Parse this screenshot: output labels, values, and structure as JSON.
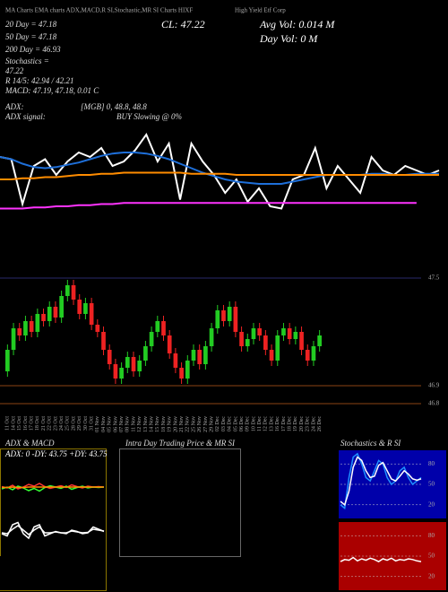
{
  "header": {
    "site": "MA Charts EMA charts ADX,MACD,R SI,Stochastic,MR SI Charts HIXF",
    "company": "High Yield Etf Corp"
  },
  "stats": {
    "close": "CL: 47.22",
    "avg_vol": "Avg Vol: 0.014  M",
    "day_vol": "Day Vol: 0  M",
    "d20": "20  Day = 47.18",
    "d50": "50  Day = 47.18",
    "d200": "200  Day = 46.93",
    "stoch_label": "Stochastics = ",
    "stoch_value": "47.22",
    "rsi": "R  14/5: 42.94 / 42.21",
    "macd": "MACD: 47.19, 47.18, 0.01 C",
    "adx_label": "ADX:",
    "adx_mgb": "[MGB] 0, 48.8, 48.8",
    "adx_signal_label": "ADX  signal:",
    "adx_signal": "BUY Slowing @ 0%"
  },
  "panels": {
    "adx_macd": "ADX  & MACD",
    "intraday": "Intra  Day Trading Price  & MR SI",
    "stoch_rsi": "Stochastics & R SI"
  },
  "chart_data": [
    {
      "type": "line",
      "ylim": [
        46.8,
        47.6
      ],
      "series": [
        {
          "color": "#ffffff",
          "values": [
            47.32,
            47.3,
            46.9,
            47.24,
            47.3,
            47.16,
            47.28,
            47.36,
            47.32,
            47.4,
            47.24,
            47.28,
            47.38,
            47.52,
            47.28,
            47.44,
            46.94,
            47.44,
            47.28,
            47.16,
            47.0,
            47.12,
            46.92,
            47.04,
            46.88,
            46.86,
            47.12,
            47.16,
            47.4,
            47.04,
            47.24,
            47.12,
            47.0,
            47.32,
            47.2,
            47.16,
            47.24,
            47.2,
            47.16,
            47.2
          ]
        },
        {
          "color": "#1e6fd9",
          "values": [
            47.32,
            47.3,
            47.26,
            47.23,
            47.22,
            47.23,
            47.25,
            47.27,
            47.3,
            47.33,
            47.35,
            47.36,
            47.36,
            47.35,
            47.33,
            47.3,
            47.26,
            47.22,
            47.18,
            47.15,
            47.12,
            47.1,
            47.09,
            47.08,
            47.08,
            47.08,
            47.1,
            47.12,
            47.14,
            47.16,
            47.16,
            47.16,
            47.16,
            47.17,
            47.17,
            47.16,
            47.16,
            47.17,
            47.17,
            47.17
          ]
        },
        {
          "color": "#ff8c00",
          "values": [
            47.12,
            47.12,
            47.13,
            47.13,
            47.14,
            47.14,
            47.15,
            47.16,
            47.16,
            47.17,
            47.17,
            47.18,
            47.18,
            47.18,
            47.18,
            47.18,
            47.18,
            47.17,
            47.17,
            47.17,
            47.17,
            47.16,
            47.16,
            47.16,
            47.16,
            47.16,
            47.16,
            47.16,
            47.16,
            47.16,
            47.16,
            47.16,
            47.16,
            47.16,
            47.16,
            47.16,
            47.16,
            47.16,
            47.16,
            47.16
          ]
        },
        {
          "color": "#ff33ff",
          "values": [
            46.86,
            46.86,
            46.86,
            46.87,
            46.87,
            46.88,
            46.88,
            46.89,
            46.89,
            46.9,
            46.9,
            46.91,
            46.91,
            46.91,
            46.91,
            46.91,
            46.91,
            46.91,
            46.91,
            46.91,
            46.91,
            46.91,
            46.91,
            46.91,
            46.91,
            46.91,
            46.91,
            46.91,
            46.91,
            46.91,
            46.91,
            46.91,
            46.91,
            46.91,
            46.91,
            46.91,
            46.91,
            46.91,
            null,
            null
          ]
        }
      ]
    },
    {
      "type": "candlestick",
      "ylim": [
        46.75,
        47.55
      ],
      "yticks": [
        47.5,
        46.9,
        46.8
      ],
      "categories": [
        "11 Oct",
        "14 Oct",
        "15 Oct",
        "16 Oct",
        "17 Oct",
        "18 Oct",
        "21 Oct",
        "22 Oct",
        "23 Oct",
        "24 Oct",
        "25 Oct",
        "28 Oct",
        "29 Oct",
        "30 Oct",
        "31 Oct",
        "01 Nov",
        "04 Nov",
        "05 Nov",
        "06 Nov",
        "07 Nov",
        "08 Nov",
        "11 Nov",
        "12 Nov",
        "13 Nov",
        "14 Nov",
        "15 Nov",
        "18 Nov",
        "19 Nov",
        "20 Nov",
        "21 Nov",
        "22 Nov",
        "25 Nov",
        "26 Nov",
        "27 Nov",
        "29 Nov",
        "02 Dec",
        "03 Dec",
        "04 Dec",
        "05 Dec",
        "06 Dec",
        "09 Dec",
        "10 Dec",
        "11 Dec",
        "12 Dec",
        "13 Dec",
        "16 Dec",
        "17 Dec",
        "18 Dec",
        "19 Dec",
        "20 Dec",
        "23 Dec",
        "24 Dec",
        "26 Dec"
      ],
      "open": [
        46.98,
        47.1,
        47.22,
        47.18,
        47.26,
        47.2,
        47.3,
        47.26,
        47.34,
        47.28,
        47.4,
        47.46,
        47.38,
        47.3,
        47.36,
        47.24,
        47.2,
        47.1,
        47.02,
        46.94,
        47.0,
        47.06,
        46.98,
        47.04,
        47.12,
        47.2,
        47.26,
        47.18,
        47.08,
        47.0,
        46.94,
        47.04,
        47.1,
        47.02,
        47.12,
        47.22,
        47.32,
        47.26,
        47.34,
        47.2,
        47.12,
        47.16,
        47.22,
        47.18,
        47.1,
        47.04,
        47.18,
        47.22,
        47.16,
        47.2,
        47.1,
        47.04,
        47.12
      ],
      "high": [
        47.13,
        47.25,
        47.25,
        47.29,
        47.29,
        47.33,
        47.33,
        47.37,
        47.37,
        47.43,
        47.49,
        47.49,
        47.41,
        47.39,
        47.39,
        47.27,
        47.23,
        47.13,
        47.05,
        47.03,
        47.09,
        47.09,
        47.07,
        47.15,
        47.23,
        47.29,
        47.29,
        47.21,
        47.11,
        47.03,
        47.07,
        47.13,
        47.13,
        47.15,
        47.25,
        47.35,
        47.35,
        47.37,
        47.37,
        47.23,
        47.19,
        47.25,
        47.25,
        47.21,
        47.13,
        47.21,
        47.25,
        47.25,
        47.23,
        47.23,
        47.13,
        47.15,
        47.21
      ],
      "low": [
        46.95,
        47.07,
        47.15,
        47.15,
        47.17,
        47.17,
        47.23,
        47.23,
        47.25,
        47.25,
        47.37,
        47.35,
        47.27,
        47.27,
        47.21,
        47.17,
        47.07,
        46.99,
        46.91,
        46.91,
        46.97,
        46.95,
        46.95,
        47.01,
        47.09,
        47.17,
        47.15,
        47.05,
        46.97,
        46.91,
        46.91,
        47.01,
        46.99,
        46.99,
        47.09,
        47.19,
        47.23,
        47.23,
        47.17,
        47.09,
        47.09,
        47.13,
        47.15,
        47.07,
        47.01,
        47.01,
        47.15,
        47.13,
        47.13,
        47.07,
        47.01,
        47.01,
        47.09
      ],
      "close": [
        47.1,
        47.22,
        47.18,
        47.26,
        47.2,
        47.3,
        47.26,
        47.34,
        47.28,
        47.4,
        47.46,
        47.38,
        47.3,
        47.36,
        47.24,
        47.2,
        47.1,
        47.02,
        46.94,
        47.0,
        47.06,
        46.98,
        47.04,
        47.12,
        47.2,
        47.26,
        47.18,
        47.08,
        47.0,
        46.94,
        47.04,
        47.1,
        47.02,
        47.12,
        47.22,
        47.32,
        47.26,
        47.34,
        47.2,
        47.12,
        47.16,
        47.22,
        47.18,
        47.1,
        47.04,
        47.18,
        47.22,
        47.16,
        47.2,
        47.1,
        47.04,
        47.12,
        47.18
      ]
    },
    {
      "type": "line",
      "title": "ADX: 0  -DY: 43.75  +DY: 43.75",
      "ylim": [
        0,
        100
      ],
      "series": [
        {
          "color": "#ff3333",
          "values": [
            45,
            42,
            48,
            40,
            44,
            50,
            46,
            52,
            45,
            41,
            44,
            47,
            43,
            49,
            45,
            42,
            46,
            44,
            45,
            44
          ]
        },
        {
          "color": "#33ff33",
          "values": [
            40,
            44,
            38,
            46,
            42,
            36,
            41,
            35,
            43,
            47,
            44,
            41,
            46,
            39,
            43,
            46,
            42,
            44,
            43,
            44
          ]
        },
        {
          "color": "#ff8c00",
          "values": [
            43,
            43,
            44,
            43,
            43,
            44,
            44,
            44,
            44,
            44,
            44,
            44,
            44,
            44,
            44,
            44,
            44,
            44,
            44,
            44
          ]
        }
      ]
    },
    {
      "type": "line",
      "ylim": [
        0,
        100
      ],
      "series": [
        {
          "color": "#ffffff",
          "values": [
            40,
            35,
            60,
            65,
            40,
            30,
            55,
            60,
            35,
            40,
            45,
            42,
            40,
            48,
            45,
            40,
            42,
            55,
            50,
            45
          ]
        },
        {
          "color": "#ffffff",
          "values": [
            42,
            40,
            50,
            58,
            48,
            38,
            48,
            55,
            42,
            42,
            44,
            42,
            42,
            46,
            44,
            42,
            43,
            50,
            48,
            46
          ]
        }
      ]
    },
    {
      "type": "line",
      "ylim": [
        0,
        100
      ],
      "yticks": [
        80,
        50,
        20
      ],
      "bg": "#0000aa",
      "series": [
        {
          "color": "#1e90ff",
          "values": [
            20,
            15,
            60,
            90,
            95,
            80,
            60,
            55,
            70,
            85,
            80,
            60,
            50,
            55,
            70,
            75,
            60,
            50,
            55,
            60
          ]
        },
        {
          "color": "#ffffff",
          "values": [
            25,
            20,
            40,
            75,
            90,
            85,
            70,
            60,
            62,
            78,
            82,
            70,
            58,
            55,
            62,
            70,
            65,
            58,
            56,
            58
          ]
        }
      ]
    },
    {
      "type": "line",
      "ylim": [
        0,
        100
      ],
      "yticks": [
        80,
        50,
        20
      ],
      "bg": "#aa0000",
      "series": [
        {
          "color": "#ffffff",
          "values": [
            42,
            45,
            44,
            48,
            43,
            46,
            44,
            47,
            45,
            42,
            46,
            44,
            47,
            43,
            45,
            44,
            46,
            45,
            43,
            42
          ]
        }
      ]
    }
  ]
}
